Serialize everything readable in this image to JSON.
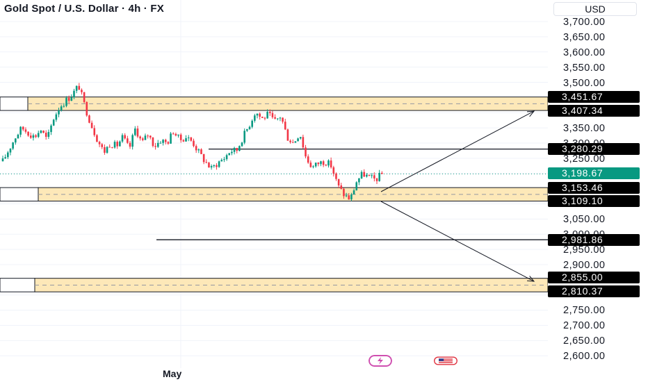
{
  "header": {
    "title": "Gold Spot / U.S. Dollar · 4h · FX"
  },
  "price_axis": {
    "currency": "USD",
    "ticks": [
      "3,700.00",
      "3,650.00",
      "3,600.00",
      "3,550.00",
      "3,500.00",
      "3,350.00",
      "3,300.00",
      "3,250.00",
      "3,050.00",
      "3,000.00",
      "2,950.00",
      "2,900.00",
      "2,750.00",
      "2,700.00",
      "2,650.00",
      "2,600.00"
    ]
  },
  "price_labels": {
    "zone1_top": "3,451.67",
    "zone1_bottom": "3,407.34",
    "resistance": "3,280.29",
    "current": "3,198.67",
    "zone2_top": "3,153.46",
    "zone2_bottom": "3,109.10",
    "support": "2,981.86",
    "zone3_top": "2,855.00",
    "zone3_bottom": "2,810.37"
  },
  "time_axis": {
    "label": "May"
  },
  "colors": {
    "up": "#089981",
    "down": "#f23645",
    "zone_fill": "#fde8b8",
    "current_line": "#089981"
  },
  "chart_data": {
    "type": "candlestick",
    "symbol": "Gold Spot / U.S. Dollar",
    "timeframe": "4h",
    "exchange": "FX",
    "y_axis_unit": "USD",
    "ylim": [
      2585,
      3725
    ],
    "current_price": 3198.67,
    "zones": [
      {
        "top": 3451.67,
        "bottom": 3407.34
      },
      {
        "top": 3153.46,
        "bottom": 3109.1
      },
      {
        "top": 2855.0,
        "bottom": 2810.37
      }
    ],
    "horizontal_levels": [
      3280.29,
      2981.86
    ],
    "projection_arrows": [
      {
        "from": 3140,
        "to": 3405
      },
      {
        "from": 3108,
        "to": 2845
      }
    ],
    "close_path": [
      3240,
      3280,
      3320,
      3350,
      3335,
      3320,
      3345,
      3310,
      3380,
      3420,
      3440,
      3460,
      3490,
      3420,
      3360,
      3310,
      3270,
      3300,
      3290,
      3320,
      3280,
      3350,
      3300,
      3330,
      3290,
      3310,
      3300,
      3340,
      3310,
      3320,
      3305,
      3270,
      3240,
      3215,
      3235,
      3250,
      3275,
      3275,
      3320,
      3360,
      3405,
      3380,
      3395,
      3370,
      3390,
      3320,
      3300,
      3335,
      3250,
      3220,
      3235,
      3240,
      3225,
      3160,
      3130,
      3115,
      3175,
      3200,
      3185,
      3180,
      3198
    ]
  }
}
